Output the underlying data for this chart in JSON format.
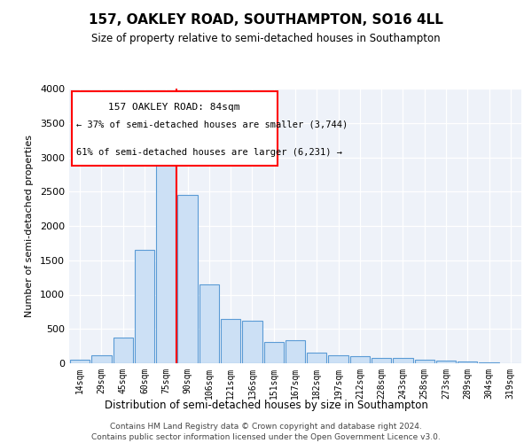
{
  "title": "157, OAKLEY ROAD, SOUTHAMPTON, SO16 4LL",
  "subtitle": "Size of property relative to semi-detached houses in Southampton",
  "xlabel": "Distribution of semi-detached houses by size in Southampton",
  "ylabel": "Number of semi-detached properties",
  "footer1": "Contains HM Land Registry data © Crown copyright and database right 2024.",
  "footer2": "Contains public sector information licensed under the Open Government Licence v3.0.",
  "property_label": "157 OAKLEY ROAD: 84sqm",
  "smaller_pct": "← 37% of semi-detached houses are smaller (3,744)",
  "larger_pct": "61% of semi-detached houses are larger (6,231) →",
  "bar_edge_color": "#5b9bd5",
  "bar_face_color": "#cce0f5",
  "vline_color": "#ff0000",
  "background_color": "#eef2f9",
  "grid_color": "#ffffff",
  "categories": [
    "14sqm",
    "29sqm",
    "45sqm",
    "60sqm",
    "75sqm",
    "90sqm",
    "106sqm",
    "121sqm",
    "136sqm",
    "151sqm",
    "167sqm",
    "182sqm",
    "197sqm",
    "212sqm",
    "228sqm",
    "243sqm",
    "258sqm",
    "273sqm",
    "289sqm",
    "304sqm",
    "319sqm"
  ],
  "values": [
    50,
    110,
    380,
    1650,
    3150,
    2450,
    1150,
    640,
    620,
    310,
    330,
    160,
    110,
    100,
    75,
    75,
    50,
    40,
    25,
    10,
    5
  ],
  "ylim": [
    0,
    4000
  ],
  "yticks": [
    0,
    500,
    1000,
    1500,
    2000,
    2500,
    3000,
    3500,
    4000
  ],
  "vline_x": 4.5
}
